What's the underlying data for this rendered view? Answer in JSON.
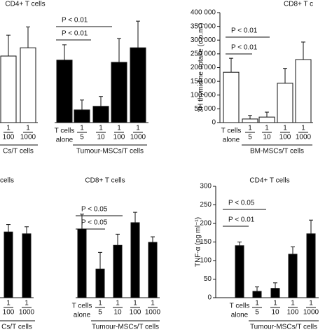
{
  "chart_data": [
    {
      "type": "bar",
      "title": "CD4+ T cells",
      "ylim": [
        0,
        400000
      ],
      "groups": [
        {
          "label": "Cs/T cells",
          "color": "#ffffff",
          "fraction_labels": true,
          "categories": [
            [
              "1",
              "100"
            ],
            [
              "1",
              "1000"
            ]
          ],
          "values": [
            242000,
            272000
          ],
          "errors": [
            76000,
            76000
          ]
        },
        {
          "color": "#000000",
          "categories": [
            [
              "T cells",
              "alone"
            ]
          ],
          "values": [
            227000
          ],
          "errors": [
            56000
          ]
        },
        {
          "label": "Tumour-MSCs/T cells",
          "color": "#000000",
          "fraction_labels": true,
          "categories": [
            [
              "1",
              "5"
            ],
            [
              "1",
              "10"
            ],
            [
              "1",
              "100"
            ],
            [
              "1",
              "1000"
            ]
          ],
          "values": [
            46000,
            59000,
            219000,
            272000
          ],
          "errors": [
            36000,
            36000,
            87000,
            97000
          ]
        }
      ],
      "annotations": [
        "P < 0.01",
        "P < 0.01"
      ]
    },
    {
      "type": "bar",
      "title": "CD8+ T c",
      "y_label": "3H thymidine uptake (c.p.m.)",
      "ylim": [
        0,
        400000
      ],
      "yticks": [
        {
          "value": 0,
          "label": "0"
        },
        {
          "value": 50000,
          "label": "50 000"
        },
        {
          "value": 100000,
          "label": "100 000"
        },
        {
          "value": 150000,
          "label": "150 000"
        },
        {
          "value": 200000,
          "label": "200 000"
        },
        {
          "value": 250000,
          "label": "250 000"
        },
        {
          "value": 300000,
          "label": "300 000"
        },
        {
          "value": 350000,
          "label": "350 000"
        },
        {
          "value": 400000,
          "label": "400 000"
        }
      ],
      "groups": [
        {
          "color": "#ffffff",
          "categories": [
            [
              "T cells",
              "alone"
            ]
          ],
          "values": [
            183000
          ],
          "errors": [
            51000
          ]
        },
        {
          "label": "BM-MSCs/T cells",
          "color": "#ffffff",
          "fraction_labels": true,
          "categories": [
            [
              "1",
              "5"
            ],
            [
              "1",
              "10"
            ],
            [
              "1",
              "100"
            ],
            [
              "1",
              "1000"
            ]
          ],
          "values": [
            13000,
            20000,
            143000,
            229000
          ],
          "errors": [
            13000,
            18000,
            54000,
            64000
          ]
        }
      ],
      "annotations": [
        "P < 0.01",
        "P < 0.01"
      ]
    },
    {
      "type": "bar",
      "title": "cells",
      "ylim": [
        0,
        300
      ],
      "groups": [
        {
          "label": "Cs/T cells",
          "color": "#000000",
          "fraction_labels": true,
          "categories": [
            [
              "1",
              "100"
            ],
            [
              "1",
              "1000"
            ]
          ],
          "values": [
            177,
            172
          ],
          "errors": [
            20,
            19
          ]
        }
      ],
      "annotations": []
    },
    {
      "type": "bar",
      "title": "CD8+ T cells",
      "ylim": [
        0,
        300
      ],
      "groups": [
        {
          "color": "#000000",
          "categories": [
            [
              "T cells",
              "alone"
            ]
          ],
          "values": [
            185
          ],
          "errors": [
            40
          ]
        },
        {
          "label": "Tumour-MSCs/T cells",
          "color": "#000000",
          "fraction_labels": true,
          "categories": [
            [
              "1",
              "5"
            ],
            [
              "1",
              "10"
            ],
            [
              "1",
              "100"
            ],
            [
              "1",
              "1000"
            ]
          ],
          "values": [
            77,
            141,
            202,
            149
          ],
          "errors": [
            45,
            30,
            28,
            15
          ]
        }
      ],
      "annotations": [
        "P < 0.05",
        "P < 0.05"
      ]
    },
    {
      "type": "bar",
      "title": "CD4+ T cells",
      "y_label": "TNF-α (pg ml⁻¹)",
      "ylim": [
        0,
        300
      ],
      "yticks": [
        0,
        50,
        100,
        150,
        200,
        250,
        300
      ],
      "groups": [
        {
          "color": "#000000",
          "categories": [
            [
              "T cells",
              "alone"
            ]
          ],
          "values": [
            140
          ],
          "errors": [
            10
          ]
        },
        {
          "label": "Tumour-MSCs/T cells",
          "color": "#000000",
          "fraction_labels": true,
          "categories": [
            [
              "1",
              "5"
            ],
            [
              "1",
              "10"
            ],
            [
              "1",
              "100"
            ],
            [
              "1",
              "1000"
            ]
          ],
          "values": [
            17,
            25,
            117,
            172
          ],
          "errors": [
            12,
            15,
            20,
            37
          ]
        }
      ],
      "annotations": [
        "P < 0.05",
        "P < 0.01"
      ]
    }
  ]
}
